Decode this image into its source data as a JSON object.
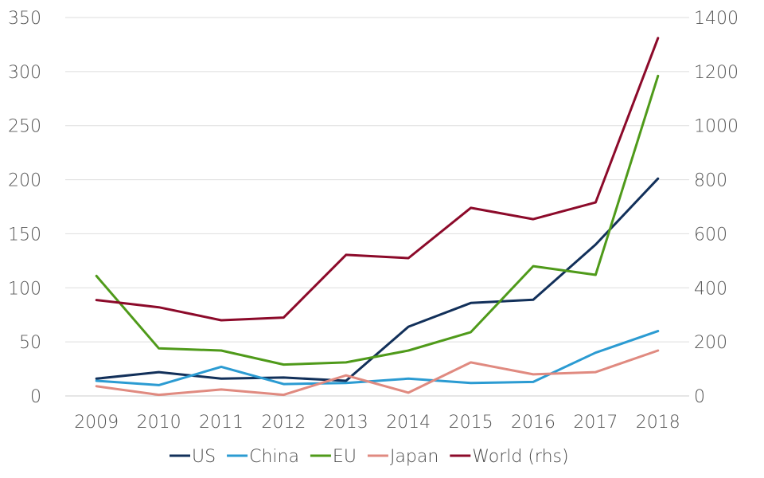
{
  "chart_data": {
    "type": "line",
    "categories": [
      "2009",
      "2010",
      "2011",
      "2012",
      "2013",
      "2014",
      "2015",
      "2016",
      "2017",
      "2018"
    ],
    "y_left": {
      "ticks": [
        0,
        50,
        100,
        150,
        200,
        250,
        300,
        350
      ],
      "min": 0,
      "max": 350
    },
    "y_right": {
      "ticks": [
        0,
        200,
        400,
        600,
        800,
        1000,
        1200,
        1400
      ],
      "min": 0,
      "max": 1400
    },
    "grid": true,
    "legend_position": "bottom",
    "series": [
      {
        "name": "US",
        "axis": "left",
        "color": "#12305a",
        "values": [
          16,
          22,
          16,
          17,
          14,
          64,
          86,
          89,
          140,
          201
        ]
      },
      {
        "name": "China",
        "axis": "left",
        "color": "#2b9bd2",
        "values": [
          14,
          10,
          27,
          11,
          12,
          16,
          12,
          13,
          40,
          60
        ]
      },
      {
        "name": "EU",
        "axis": "left",
        "color": "#4f9a1a",
        "values": [
          111,
          44,
          42,
          29,
          31,
          42,
          59,
          120,
          112,
          296
        ]
      },
      {
        "name": "Japan",
        "axis": "left",
        "color": "#e08a80",
        "values": [
          9,
          1,
          6,
          1,
          19,
          3,
          31,
          20,
          22,
          42
        ]
      },
      {
        "name": "World (rhs)",
        "axis": "right",
        "color": "#8c0a2a",
        "values": [
          355,
          328,
          280,
          290,
          522,
          510,
          696,
          654,
          716,
          1324
        ]
      }
    ]
  }
}
